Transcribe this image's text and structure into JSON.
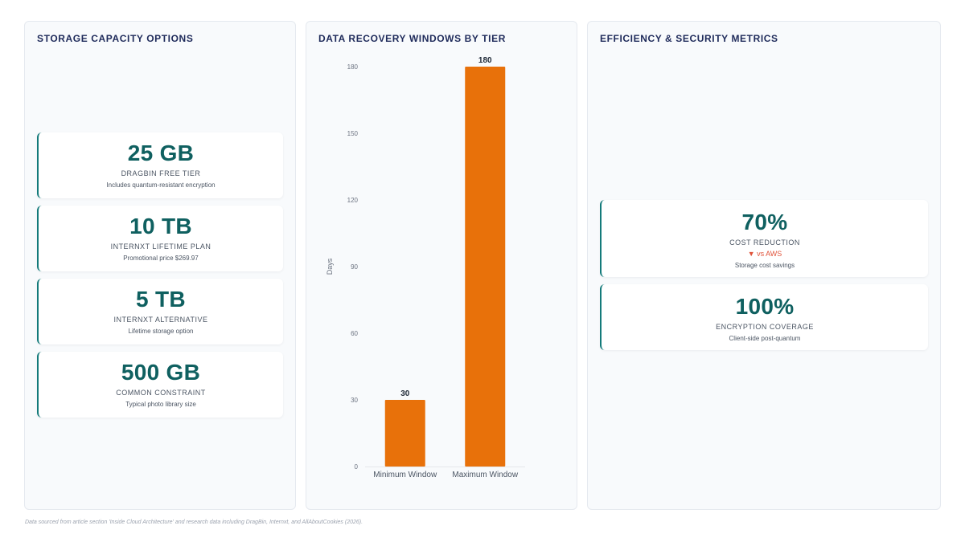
{
  "storage_panel": {
    "title": "STORAGE CAPACITY OPTIONS",
    "cards": [
      {
        "value": "25 GB",
        "label": "DRAGBIN FREE TIER",
        "note": "Includes quantum-resistant encryption"
      },
      {
        "value": "10 TB",
        "label": "INTERNXT LIFETIME PLAN",
        "note": "Promotional price $269.97"
      },
      {
        "value": "5 TB",
        "label": "INTERNXT ALTERNATIVE",
        "note": "Lifetime storage option"
      },
      {
        "value": "500 GB",
        "label": "COMMON CONSTRAINT",
        "note": "Typical photo library size"
      }
    ]
  },
  "recovery_panel": {
    "title": "DATA RECOVERY WINDOWS BY TIER"
  },
  "metrics_panel": {
    "title": "EFFICIENCY & SECURITY METRICS",
    "cards": [
      {
        "value": "70%",
        "label": "COST REDUCTION",
        "delta": "▼ vs AWS",
        "note": "Storage cost savings"
      },
      {
        "value": "100%",
        "label": "ENCRYPTION COVERAGE",
        "note": "Client-side post-quantum"
      }
    ]
  },
  "footer": {
    "text": "Data sourced from article section 'Inside Cloud Architecture' and research data including DragBin, Internxt, and AllAboutCookies (2026)."
  },
  "colors": {
    "bar": "#e8710a",
    "accent": "#137a7a",
    "delta_down": "#e0533a"
  },
  "chart_data": {
    "type": "bar",
    "categories": [
      "Minimum Window",
      "Maximum Window"
    ],
    "values": [
      30,
      180
    ],
    "ylabel": "Days",
    "ylim": [
      0,
      180
    ],
    "yticks": [
      0,
      30,
      60,
      90,
      120,
      150,
      180
    ],
    "data_labels": [
      "30",
      "180"
    ],
    "grid": false,
    "legend": false
  }
}
